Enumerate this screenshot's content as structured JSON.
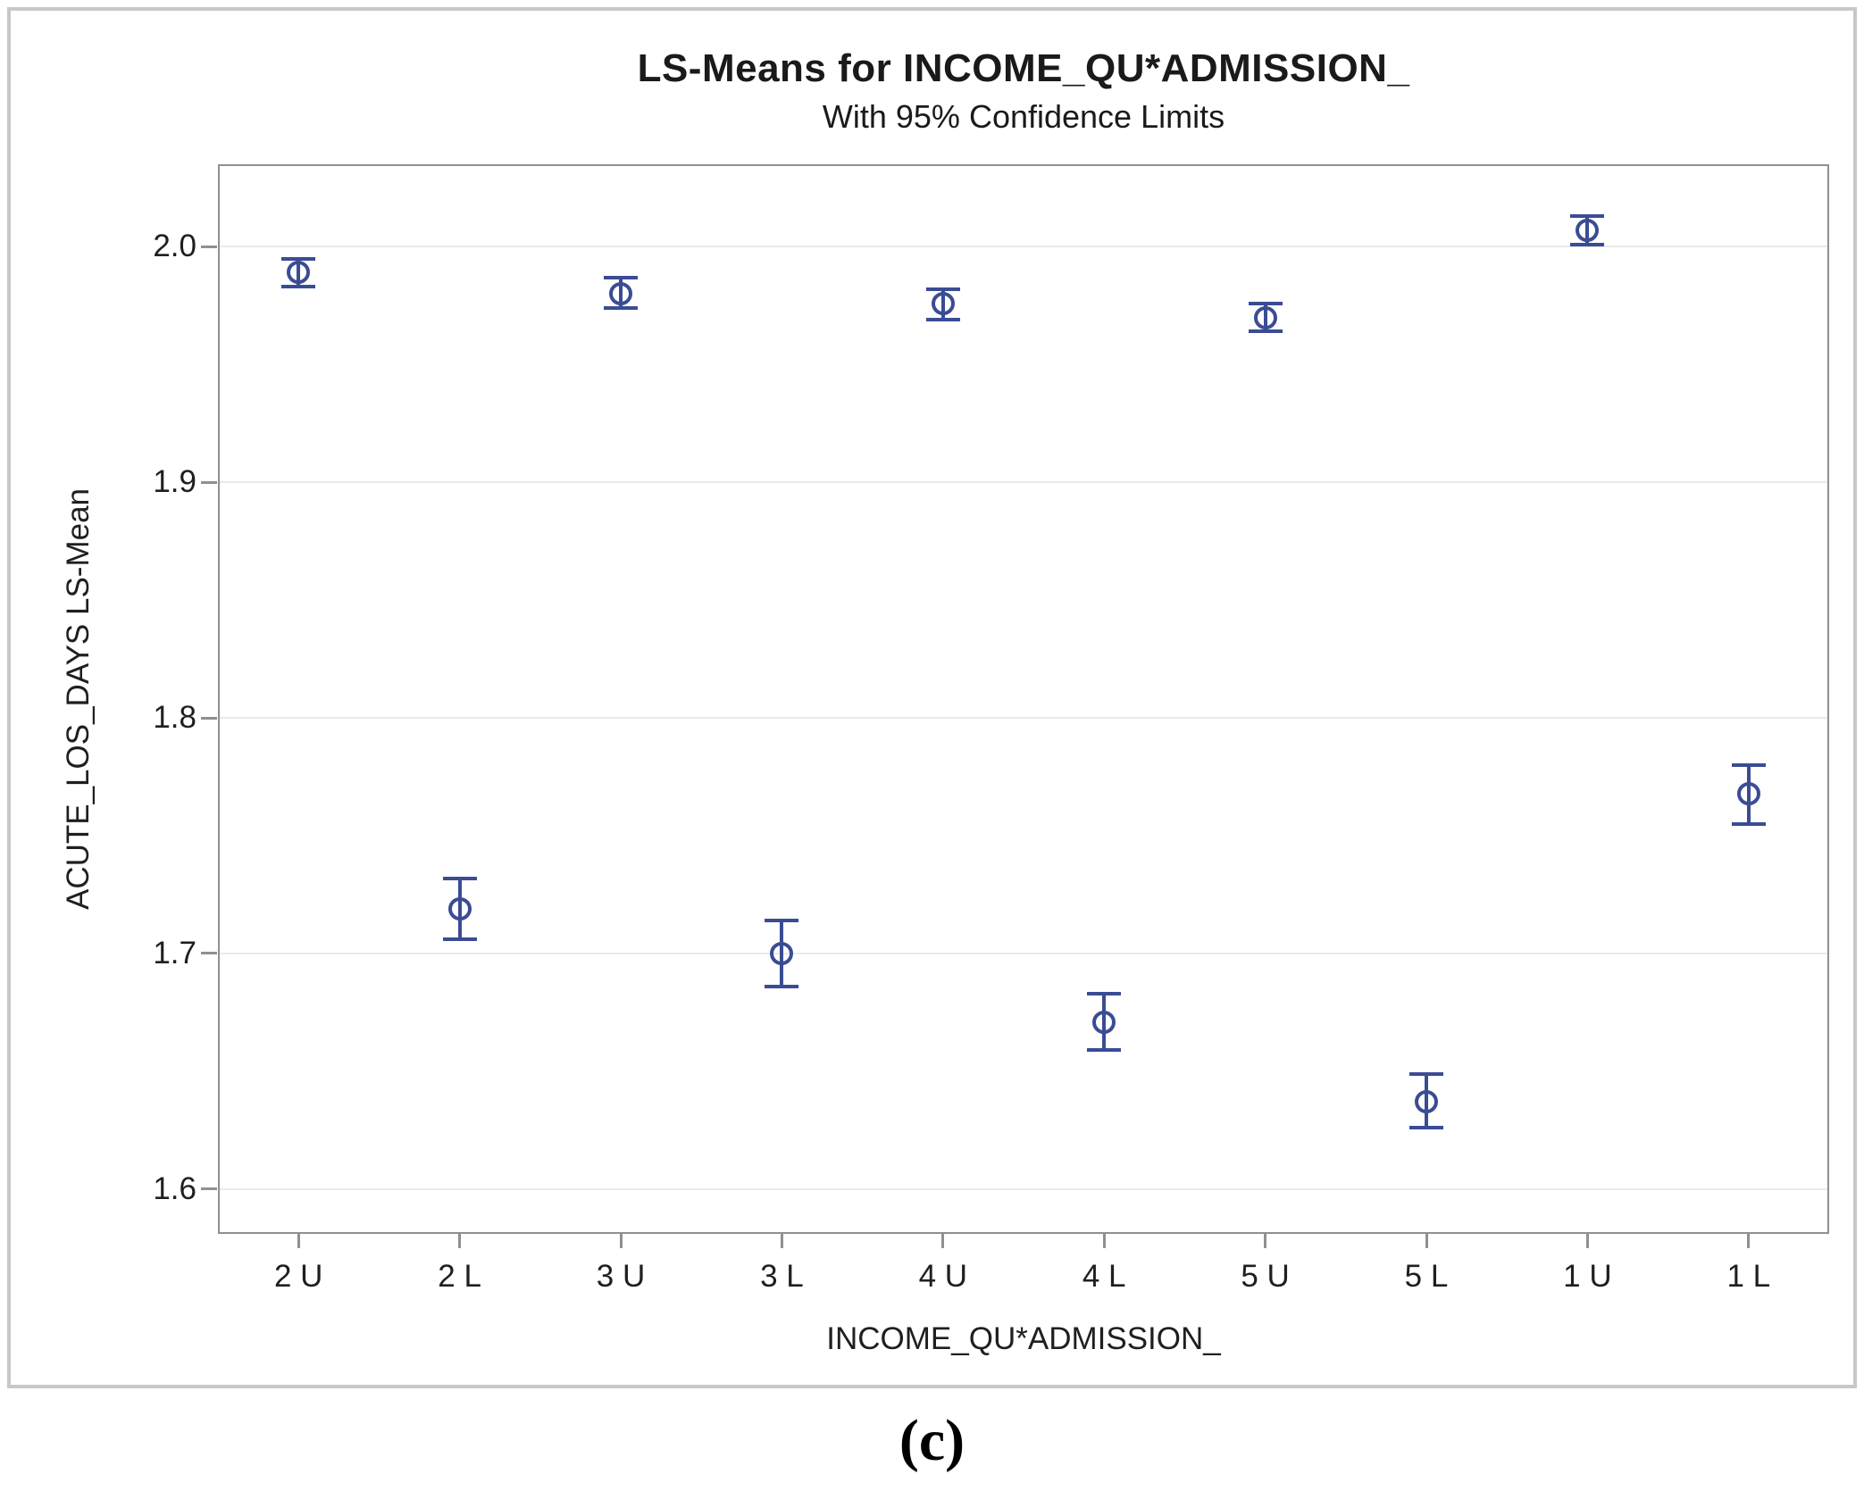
{
  "caption": "(c)",
  "colors": {
    "marker": "#3a4c94",
    "gridline": "#eaeaea",
    "axis": "#8e9092",
    "frame": "#c8c8c8",
    "text": "#1f1f1f"
  },
  "chart_data": {
    "type": "scatter",
    "title": "LS-Means for INCOME_QU*ADMISSION_",
    "subtitle": "With 95% Confidence Limits",
    "xlabel": "INCOME_QU*ADMISSION_",
    "ylabel": "ACUTE_LOS_DAYS LS-Mean",
    "categories": [
      "2 U",
      "2 L",
      "3 U",
      "3 L",
      "4 U",
      "4 L",
      "5 U",
      "5 L",
      "1 U",
      "1 L"
    ],
    "series": [
      {
        "name": "LS-Mean with 95% CI",
        "means": [
          1.989,
          1.719,
          1.98,
          1.7,
          1.976,
          1.671,
          1.97,
          1.637,
          2.007,
          1.768
        ],
        "lower": [
          1.983,
          1.706,
          1.974,
          1.686,
          1.969,
          1.659,
          1.964,
          1.626,
          2.001,
          1.755
        ],
        "upper": [
          1.995,
          1.732,
          1.987,
          1.714,
          1.982,
          1.683,
          1.976,
          1.649,
          2.013,
          1.78
        ]
      }
    ],
    "ytick_labels": [
      "2.0",
      "1.9",
      "1.8",
      "1.7",
      "1.6"
    ],
    "ytick_values": [
      2.0,
      1.9,
      1.8,
      1.7,
      1.6
    ],
    "ylim": [
      1.581,
      2.035
    ],
    "grid": "horizontal-only",
    "legend": "none",
    "marker_style": "open-circle-with-error-bars"
  }
}
